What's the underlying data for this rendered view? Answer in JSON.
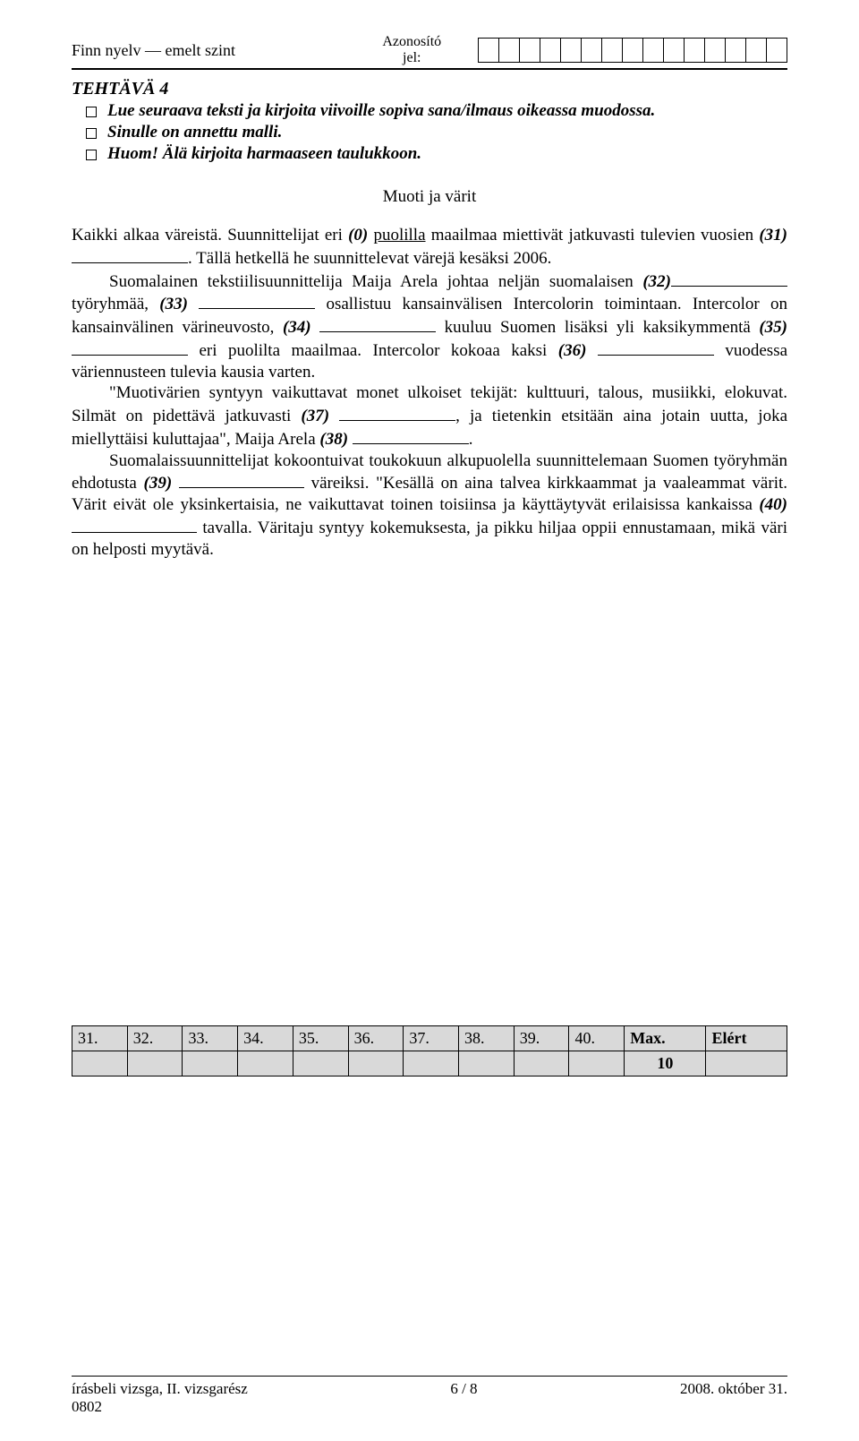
{
  "header": {
    "left": "Finn nyelv — emelt szint",
    "center_line1": "Azonosító",
    "center_line2": "jel:",
    "id_cell_count": 15
  },
  "task": {
    "title": "TEHTÄVÄ 4",
    "instr1": "Lue seuraava teksti ja kirjoita viivoille sopiva sana/ilmaus oikeassa muodossa.",
    "instr2": "Sinulle on annettu malli.",
    "instr3": "Huom! Älä kirjoita harmaaseen taulukkoon."
  },
  "article": {
    "title": "Muoti ja värit",
    "p1_a": "Kaikki alkaa väreistä. Suunnittelijat eri ",
    "p1_zero": "(0)",
    "p1_underlined": "puolilla",
    "p1_b": " maailmaa miettivät jatkuvasti tulevien vuosien ",
    "p1_31": "(31)",
    "p1_c": ". Tällä hetkellä he suunnittelevat värejä kesäksi 2006.",
    "p2_a": "Suomalainen tekstiilisuunnittelija Maija Arela johtaa neljän suomalaisen ",
    "p2_32": "(32)",
    "p2_b": " työryhmää, ",
    "p2_33": "(33)",
    "p2_c": " osallistuu kansainvälisen Intercolorin toimintaan. Intercolor on kansainvälinen värineuvosto, ",
    "p2_34": "(34)",
    "p2_d": " kuuluu Suomen lisäksi yli kaksikymmentä ",
    "p2_35": "(35)",
    "p2_e": " eri puolilta maailmaa. Intercolor kokoaa kaksi ",
    "p2_36": "(36)",
    "p2_f": " vuodessa väriennusteen tulevia kausia varten.",
    "p3_a": "\"Muotivärien syntyyn vaikuttavat monet ulkoiset tekijät: kulttuuri, talous, musiikki, elokuvat. Silmät on pidettävä jatkuvasti ",
    "p3_37": "(37)",
    "p3_b": ", ja tietenkin etsitään aina jotain uutta, joka miellyttäisi kuluttajaa\", Maija Arela ",
    "p3_38": "(38)",
    "p3_c": ".",
    "p4_a": "Suomalaissuunnittelijat kokoontuivat toukokuun alkupuolella suunnittelemaan Suomen työryhmän ehdotusta ",
    "p4_39": "(39)",
    "p4_b": " väreiksi. \"Kesällä on aina talvea kirkkaammat ja vaaleammat värit. Värit eivät ole yksinkertaisia, ne vaikuttavat toinen toisiinsa ja käyttäytyvät erilaisissa kankaissa ",
    "p4_40": "(40)",
    "p4_c": " tavalla. Väritaju syntyy kokemuksesta, ja pikku hiljaa oppii ennustamaan, mikä väri on helposti myytävä."
  },
  "score": {
    "cells": [
      "31.",
      "32.",
      "33.",
      "34.",
      "35.",
      "36.",
      "37.",
      "38.",
      "39.",
      "40."
    ],
    "max_label": "Max.",
    "elert_label": "Elért",
    "max_value": "10"
  },
  "footer": {
    "left_line1": "írásbeli vizsga, II. vizsgarész",
    "left_line2": "0802",
    "center": "6 / 8",
    "right": "2008. október 31."
  }
}
